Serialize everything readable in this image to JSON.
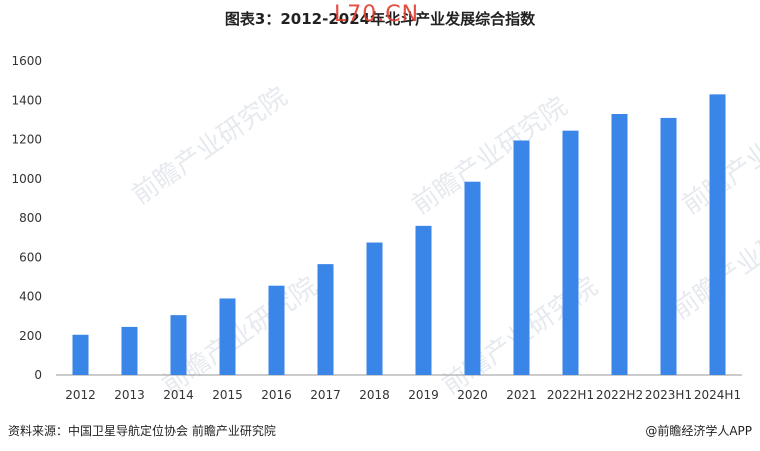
{
  "title": "图表3：2012-2024年北斗产业发展综合指数",
  "stamp_text": "L70.CN",
  "footer": {
    "source": "资料来源：中国卫星导航定位协会 前瞻产业研究院",
    "credit": "@前瞻经济学人APP"
  },
  "watermark_text": "前瞻产业研究院",
  "colors": {
    "bar": "#3a86e8",
    "axis": "#999999"
  },
  "chart_data": {
    "type": "bar",
    "title": "图表3：2012-2024年北斗产业发展综合指数",
    "xlabel": "",
    "ylabel": "",
    "ylim": [
      0,
      1600
    ],
    "yticks": [
      0,
      200,
      400,
      600,
      800,
      1000,
      1200,
      1400,
      1600
    ],
    "grid": false,
    "categories": [
      "2012",
      "2013",
      "2014",
      "2015",
      "2016",
      "2017",
      "2018",
      "2019",
      "2020",
      "2021",
      "2022H1",
      "2022H2",
      "2023H1",
      "2024H1"
    ],
    "values": [
      205,
      245,
      305,
      390,
      455,
      565,
      675,
      760,
      985,
      1195,
      1245,
      1330,
      1310,
      1430
    ]
  }
}
